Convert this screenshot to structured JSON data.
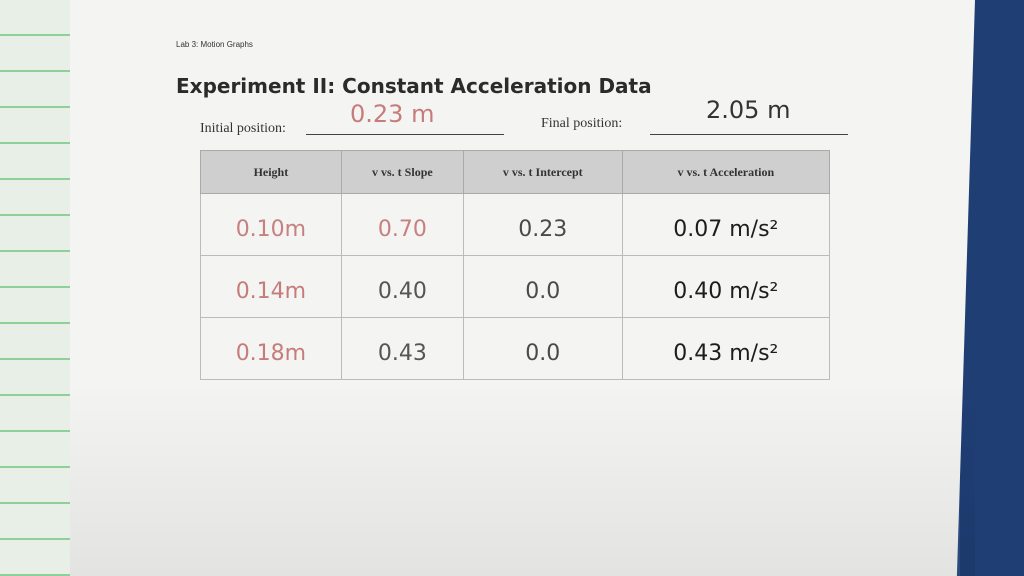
{
  "header": {
    "lab": "Lab 3: Motion Graphs",
    "title": "Experiment II: Constant Acceleration Data"
  },
  "fields": {
    "initial": {
      "label": "Initial position:",
      "value": "0.23 m"
    },
    "final": {
      "label": "Final position:",
      "value": "2.05 m"
    }
  },
  "table": {
    "columns": [
      "Height",
      "v vs. t Slope",
      "v vs. t Intercept",
      "v vs. t Acceleration"
    ],
    "rows": [
      [
        "0.10m",
        "0.70",
        "0.23",
        "0.07 m/s²"
      ],
      [
        "0.14m",
        "0.40",
        "0.0",
        "0.40 m/s²"
      ],
      [
        "0.18m",
        "0.43",
        "0.0",
        "0.43 m/s²"
      ]
    ]
  }
}
